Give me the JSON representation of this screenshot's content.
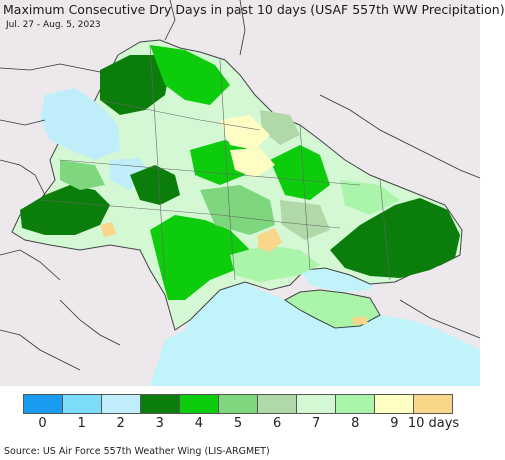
{
  "title": "Maximum Consecutive Dry Days in past 10 days (USAF 557th WW Precipitation)",
  "subtitle": "Jul. 27 - Aug. 5, 2023",
  "legend": {
    "colors": [
      "#1a9cf0",
      "#7ddcf8",
      "#bfeefa",
      "#0a7d0a",
      "#0ccc0c",
      "#7ed67e",
      "#b0d8a8",
      "#d4f7d4",
      "#aaf5aa",
      "#fdfdc4",
      "#fad68a"
    ],
    "labels": [
      "0",
      "1",
      "2",
      "3",
      "4",
      "5",
      "6",
      "7",
      "8",
      "9",
      "10 days"
    ]
  },
  "source": "Source: US Air Force 557th Weather Wing (LIS-ARGMET)",
  "map_colors": {
    "outside": "#ece8ec",
    "sea": "#c0f3fa",
    "border": "#444444"
  }
}
